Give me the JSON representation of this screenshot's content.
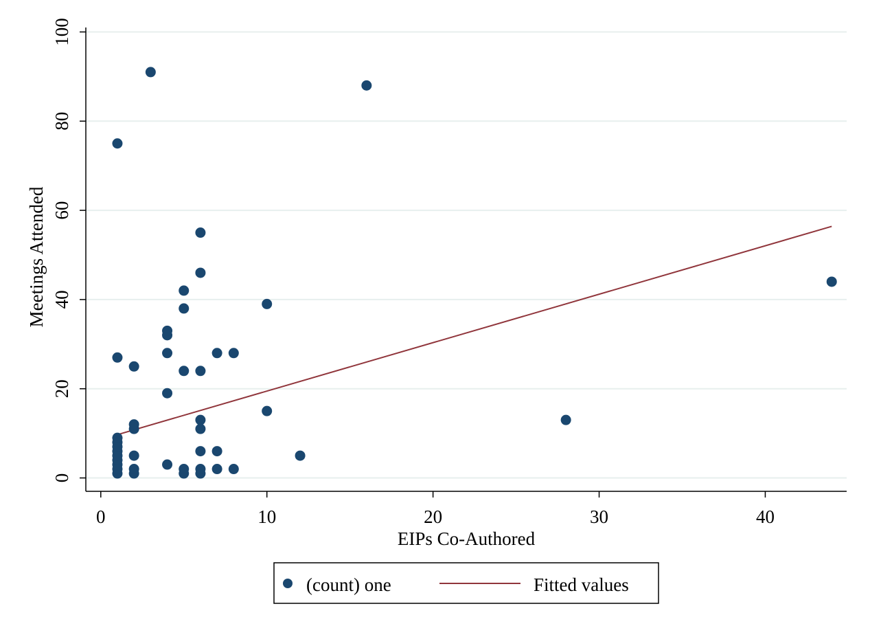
{
  "chart_data": {
    "type": "scatter",
    "xlabel": "EIPs Co-Authored",
    "ylabel": "Meetings Attended",
    "xlim": [
      -0.9,
      44.9
    ],
    "ylim": [
      -3.0,
      101.0
    ],
    "xticks": [
      0,
      10,
      20,
      30,
      40
    ],
    "yticks": [
      0,
      20,
      40,
      60,
      80,
      100
    ],
    "grid": "horizontal",
    "legend_position": "bottom-center",
    "colors": {
      "points": "#1a476f",
      "fit_line": "#90353b",
      "grid": "#e7efee"
    },
    "series": [
      {
        "name": "(count) one",
        "kind": "scatter",
        "points": [
          [
            1,
            1
          ],
          [
            1,
            2
          ],
          [
            1,
            3
          ],
          [
            1,
            4
          ],
          [
            1,
            5
          ],
          [
            1,
            6
          ],
          [
            1,
            7
          ],
          [
            1,
            8
          ],
          [
            1,
            9
          ],
          [
            1,
            27
          ],
          [
            1,
            75
          ],
          [
            2,
            1
          ],
          [
            2,
            2
          ],
          [
            2,
            5
          ],
          [
            2,
            11
          ],
          [
            2,
            12
          ],
          [
            2,
            25
          ],
          [
            3,
            91
          ],
          [
            4,
            3
          ],
          [
            4,
            19
          ],
          [
            4,
            28
          ],
          [
            4,
            32
          ],
          [
            4,
            33
          ],
          [
            5,
            1
          ],
          [
            5,
            2
          ],
          [
            5,
            24
          ],
          [
            5,
            38
          ],
          [
            5,
            42
          ],
          [
            6,
            1
          ],
          [
            6,
            2
          ],
          [
            6,
            6
          ],
          [
            6,
            11
          ],
          [
            6,
            13
          ],
          [
            6,
            24
          ],
          [
            6,
            46
          ],
          [
            6,
            55
          ],
          [
            7,
            2
          ],
          [
            7,
            6
          ],
          [
            7,
            28
          ],
          [
            8,
            2
          ],
          [
            8,
            28
          ],
          [
            10,
            15
          ],
          [
            10,
            39
          ],
          [
            12,
            5
          ],
          [
            16,
            88
          ],
          [
            28,
            13
          ],
          [
            44,
            44
          ]
        ]
      },
      {
        "name": "Fitted values",
        "kind": "line",
        "points": [
          [
            1,
            9.7
          ],
          [
            44,
            56.4
          ]
        ]
      }
    ]
  }
}
